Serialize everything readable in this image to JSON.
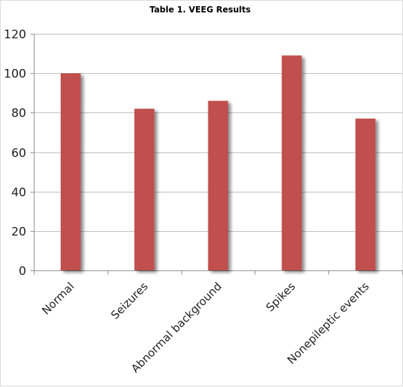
{
  "chart_data": {
    "type": "bar",
    "title": "Table 1. VEEG Results",
    "categories": [
      "Normal",
      "Seizures",
      "Abnormal background",
      "Spikes",
      "Nonepileptic events"
    ],
    "values": [
      100,
      82,
      86,
      109,
      77
    ],
    "xlabel": "",
    "ylabel": "",
    "ylim": [
      0,
      120
    ],
    "yticks": [
      0,
      20,
      40,
      60,
      80,
      100,
      120
    ],
    "grid": true,
    "legend": "none",
    "bar_color": "#c0504d",
    "bar_shadow_color": "#9a9a9a"
  }
}
